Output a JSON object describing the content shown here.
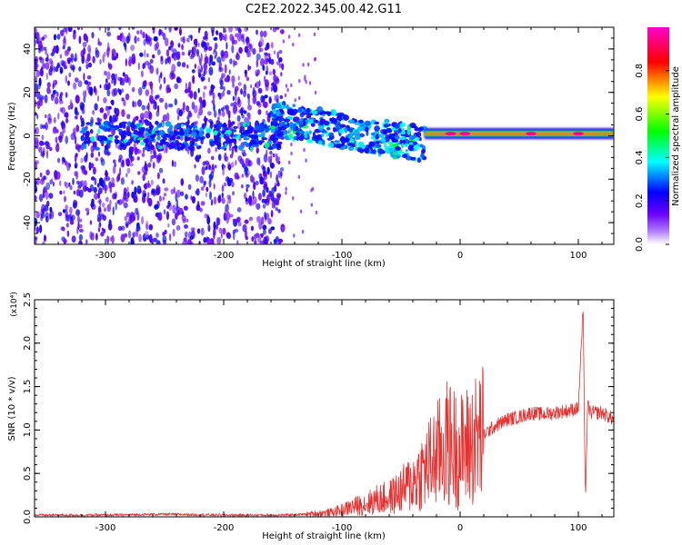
{
  "figure_title": "C2E2.2022.345.00.42.G11",
  "chart_data": [
    {
      "type": "heatmap",
      "title": "",
      "xlabel": "Height of straight line (km)",
      "ylabel": "Frequency (Hz)",
      "xlim": [
        -360,
        130
      ],
      "ylim": [
        -50,
        50
      ],
      "x_ticks": [
        -300,
        -200,
        -100,
        0,
        100
      ],
      "y_ticks": [
        -40,
        -20,
        0,
        20,
        40
      ],
      "grid": false,
      "colorbar": {
        "label": "Normalized spectral amplitude",
        "range": [
          0.0,
          1.0
        ],
        "ticks": [
          "0.0",
          "0.2",
          "0.4",
          "0.6",
          "0.8"
        ],
        "colors": [
          "#ffffff",
          "#6a00ff",
          "#0000ff",
          "#00ffff",
          "#00ff00",
          "#ffff00",
          "#ff0000",
          "#ff00cc"
        ]
      },
      "features": [
        {
          "x_range": [
            -360,
            -150
          ],
          "y_range": [
            -50,
            50
          ],
          "amplitude": 0.1,
          "desc": "broadband noise"
        },
        {
          "x_range": [
            -320,
            -150
          ],
          "y_center": 0,
          "width_hz": 6,
          "amplitude": 0.25
        },
        {
          "x_range": [
            -160,
            -30
          ],
          "y_center_start": 8,
          "y_center_end": -4,
          "width_hz": 8,
          "amplitude": 0.35
        },
        {
          "x_range": [
            -30,
            130
          ],
          "y_center": 1,
          "width_hz": 2,
          "amplitude": 0.9
        }
      ]
    },
    {
      "type": "line",
      "title": "",
      "xlabel": "Height of straight line (km)",
      "ylabel": "SNR (10 * v/v)",
      "y_multiplier": "(x10⁴)",
      "xlim": [
        -360,
        130
      ],
      "ylim": [
        0.0,
        2.5
      ],
      "x_ticks": [
        -300,
        -200,
        -100,
        0,
        100
      ],
      "y_ticks": [
        "0.0",
        "0.5",
        "1.0",
        "1.5",
        "2.0",
        "2.5"
      ],
      "grid": false,
      "series": [
        {
          "color": "#e8302f",
          "x": [
            -360,
            -300,
            -250,
            -200,
            -150,
            -130,
            -110,
            -100,
            -90,
            -80,
            -70,
            -60,
            -50,
            -40,
            -30,
            -20,
            -10,
            0,
            10,
            20,
            30,
            40,
            50,
            60,
            70,
            80,
            90,
            100,
            104,
            106,
            108,
            110,
            120,
            130
          ],
          "y": [
            0.02,
            0.02,
            0.03,
            0.02,
            0.02,
            0.03,
            0.05,
            0.08,
            0.12,
            0.15,
            0.2,
            0.22,
            0.3,
            0.4,
            0.55,
            0.7,
            0.85,
            0.75,
            0.85,
            0.95,
            1.05,
            1.12,
            1.15,
            1.2,
            1.18,
            1.2,
            1.22,
            1.25,
            2.4,
            0.2,
            1.3,
            1.2,
            1.2,
            1.12
          ]
        }
      ]
    }
  ]
}
